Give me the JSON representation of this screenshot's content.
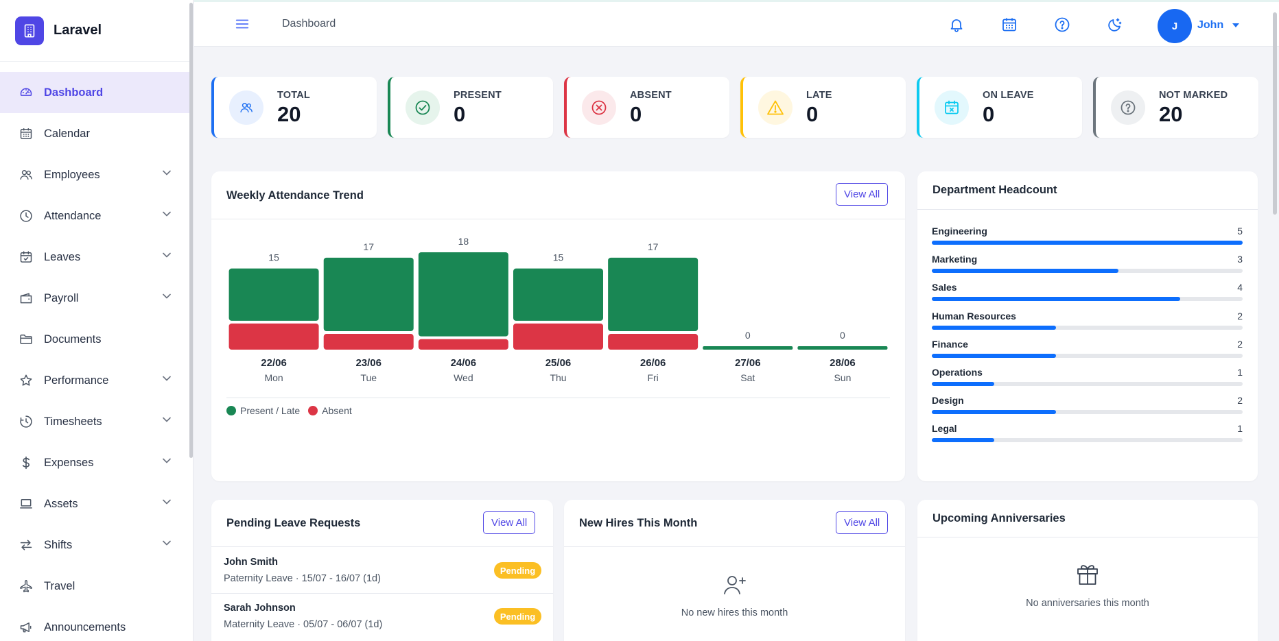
{
  "brand": {
    "name": "Laravel"
  },
  "nav": [
    {
      "label": "Dashboard",
      "icon": "gauge-icon",
      "active": true,
      "chevron": false
    },
    {
      "label": "Calendar",
      "icon": "calendar-icon",
      "chevron": false
    },
    {
      "label": "Employees",
      "icon": "users-icon",
      "chevron": true
    },
    {
      "label": "Attendance",
      "icon": "clock-icon",
      "chevron": true
    },
    {
      "label": "Leaves",
      "icon": "calendar-check-icon",
      "chevron": true
    },
    {
      "label": "Payroll",
      "icon": "wallet-icon",
      "chevron": true
    },
    {
      "label": "Documents",
      "icon": "folder-icon",
      "chevron": false
    },
    {
      "label": "Performance",
      "icon": "star-icon",
      "chevron": true
    },
    {
      "label": "Timesheets",
      "icon": "history-icon",
      "chevron": true
    },
    {
      "label": "Expenses",
      "icon": "dollar-icon",
      "chevron": true
    },
    {
      "label": "Assets",
      "icon": "laptop-icon",
      "chevron": true
    },
    {
      "label": "Shifts",
      "icon": "swap-icon",
      "chevron": true
    },
    {
      "label": "Travel",
      "icon": "airplane-icon",
      "chevron": false
    },
    {
      "label": "Announcements",
      "icon": "megaphone-icon",
      "chevron": false
    }
  ],
  "topbar": {
    "breadcrumb": "Dashboard",
    "user_initial": "J",
    "user_name": "John"
  },
  "stats": [
    {
      "label": "TOTAL",
      "value": "20",
      "color": "#1d6ff2",
      "icon": "users-icon"
    },
    {
      "label": "PRESENT",
      "value": "0",
      "color": "#198754",
      "icon": "check-circle-icon"
    },
    {
      "label": "ABSENT",
      "value": "0",
      "color": "#dc3545",
      "icon": "x-circle-icon"
    },
    {
      "label": "LATE",
      "value": "0",
      "color": "#ffc107",
      "icon": "warning-icon"
    },
    {
      "label": "ON LEAVE",
      "value": "0",
      "color": "#0dcaf0",
      "icon": "calendar-x-icon"
    },
    {
      "label": "NOT MARKED",
      "value": "20",
      "color": "#6c757d",
      "icon": "question-circle-icon"
    }
  ],
  "weekly": {
    "title": "Weekly Attendance Trend",
    "view_all": "View All",
    "legend": {
      "present": "Present / Late",
      "absent": "Absent"
    }
  },
  "chart_data": {
    "type": "bar",
    "stacked": true,
    "categories": [
      "22/06",
      "23/06",
      "24/06",
      "25/06",
      "26/06",
      "27/06",
      "28/06"
    ],
    "days": [
      "Mon",
      "Tue",
      "Wed",
      "Thu",
      "Fri",
      "Sat",
      "Sun"
    ],
    "totals": [
      15,
      17,
      18,
      15,
      17,
      0,
      0
    ],
    "series": [
      {
        "name": "Present / Late",
        "color": "#198754",
        "values": [
          10,
          14,
          16,
          10,
          14,
          0,
          0
        ]
      },
      {
        "name": "Absent",
        "color": "#dc3545",
        "values": [
          5,
          3,
          2,
          5,
          3,
          0,
          0
        ]
      }
    ]
  },
  "departments": {
    "title": "Department Headcount",
    "items": [
      {
        "name": "Engineering",
        "count": "5",
        "ratio": 1.0
      },
      {
        "name": "Marketing",
        "count": "3",
        "ratio": 0.6
      },
      {
        "name": "Sales",
        "count": "4",
        "ratio": 0.8
      },
      {
        "name": "Human Resources",
        "count": "2",
        "ratio": 0.4
      },
      {
        "name": "Finance",
        "count": "2",
        "ratio": 0.4
      },
      {
        "name": "Operations",
        "count": "1",
        "ratio": 0.2
      },
      {
        "name": "Design",
        "count": "2",
        "ratio": 0.4
      },
      {
        "name": "Legal",
        "count": "1",
        "ratio": 0.2
      }
    ]
  },
  "leaves": {
    "title": "Pending Leave Requests",
    "view_all": "View All",
    "items": [
      {
        "name": "John Smith",
        "detail": "Paternity Leave · 15/07 - 16/07 (1d)",
        "status": "Pending"
      },
      {
        "name": "Sarah Johnson",
        "detail": "Maternity Leave · 05/07 - 06/07 (1d)",
        "status": "Pending"
      }
    ]
  },
  "hires": {
    "title": "New Hires This Month",
    "view_all": "View All",
    "empty": "No new hires this month"
  },
  "anniversaries": {
    "title": "Upcoming Anniversaries",
    "empty": "No anniversaries this month"
  }
}
